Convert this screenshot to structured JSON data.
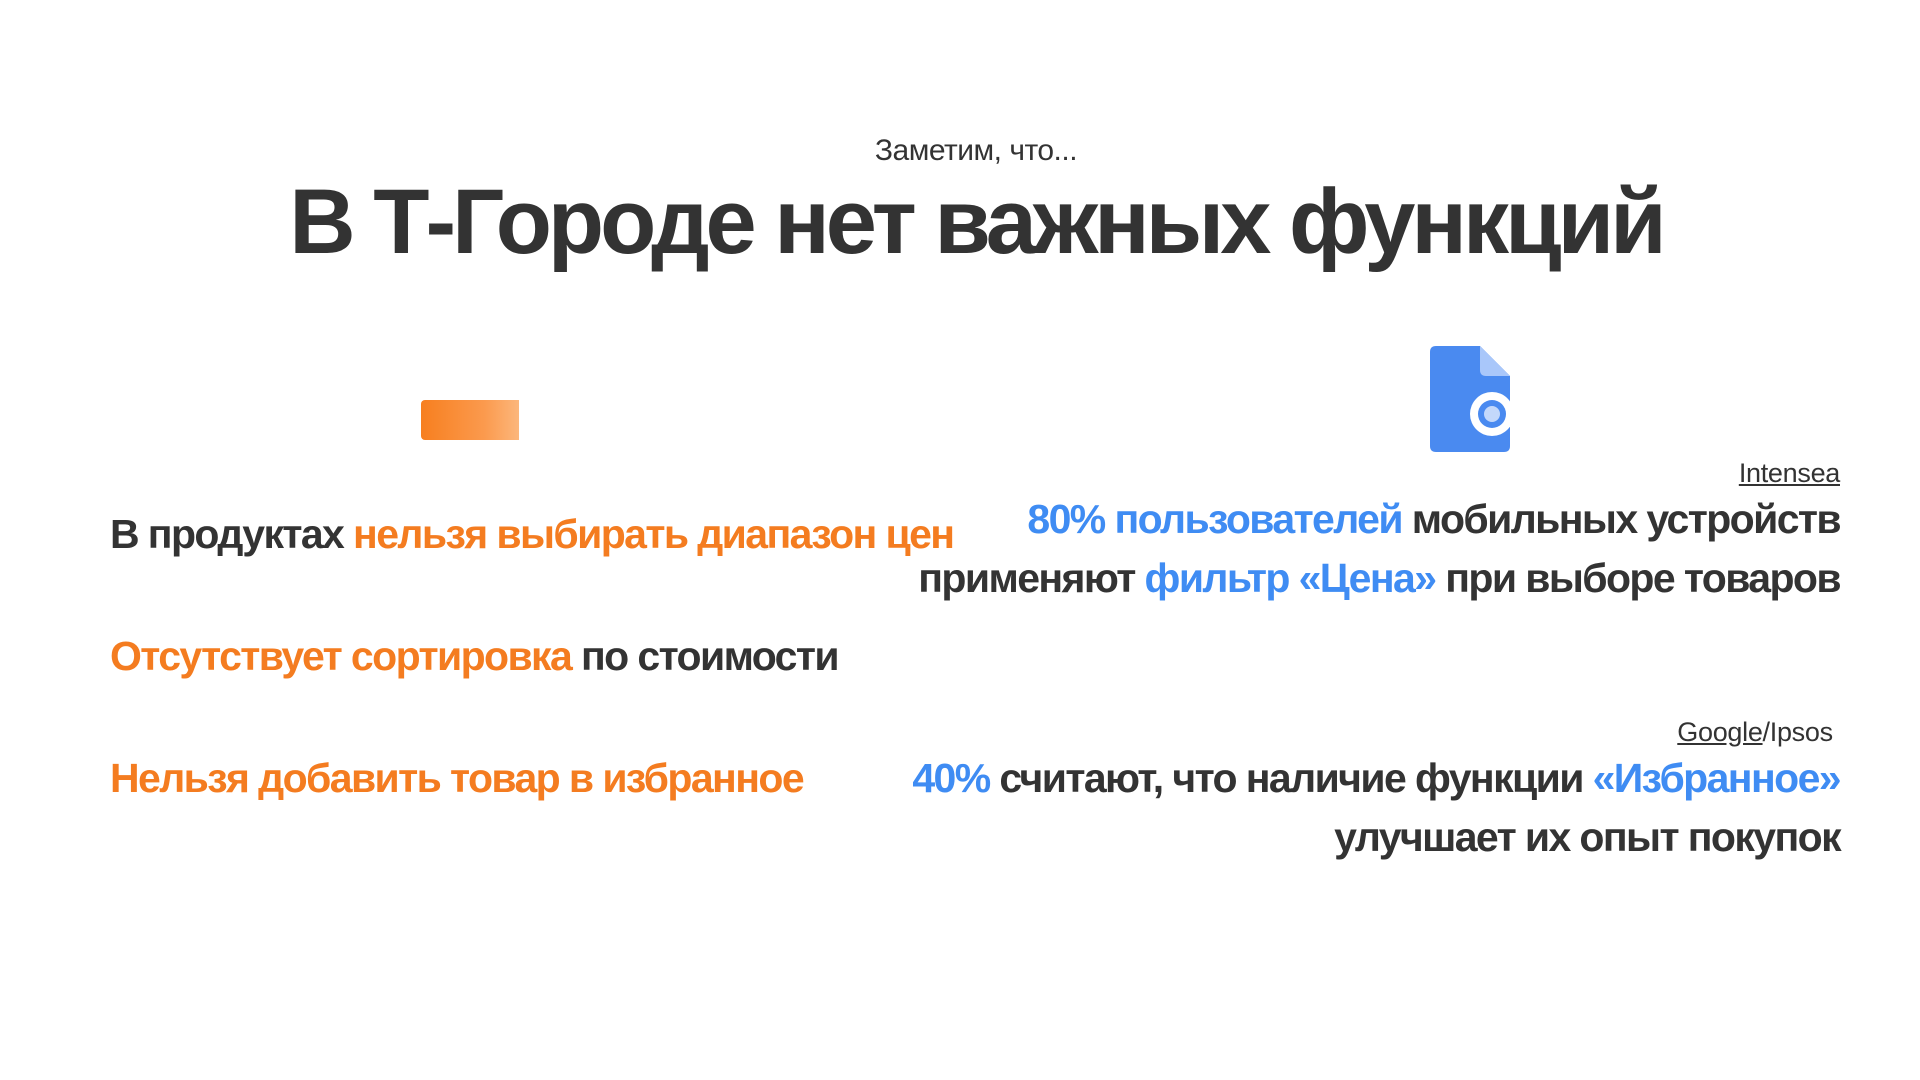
{
  "header": {
    "subtitle": "Заметим, что...",
    "title": "В Т-Городе нет важных функций"
  },
  "left": {
    "item1": {
      "part1": "В продуктах ",
      "highlight": "нельзя выбирать диапазон цен"
    },
    "item2": {
      "highlight": "Отсутствует сортировка",
      "part2": " по стоимости"
    },
    "item3": {
      "highlight": "Нельзя добавить товар в избранное"
    }
  },
  "right": {
    "stat1": {
      "source": "Intensea",
      "highlight1": "80% пользователей",
      "text1": " мобильных устройств применяют ",
      "highlight2": "фильтр «Цена»",
      "text2": " при выборе товаров"
    },
    "stat2": {
      "source_part1": "Google",
      "source_sep": "/",
      "source_part2": "Ipsos",
      "highlight1": "40%",
      "text1": " считают, что наличие функции ",
      "highlight2": "«Избранное»",
      "text2": " улучшает их опыт покупок"
    }
  },
  "colors": {
    "orange": "#f47c20",
    "blue": "#3f8cf3",
    "text": "#333333"
  },
  "icons": {
    "left_decor": "orange-gradient-bar",
    "right_decor": "document-icon"
  }
}
